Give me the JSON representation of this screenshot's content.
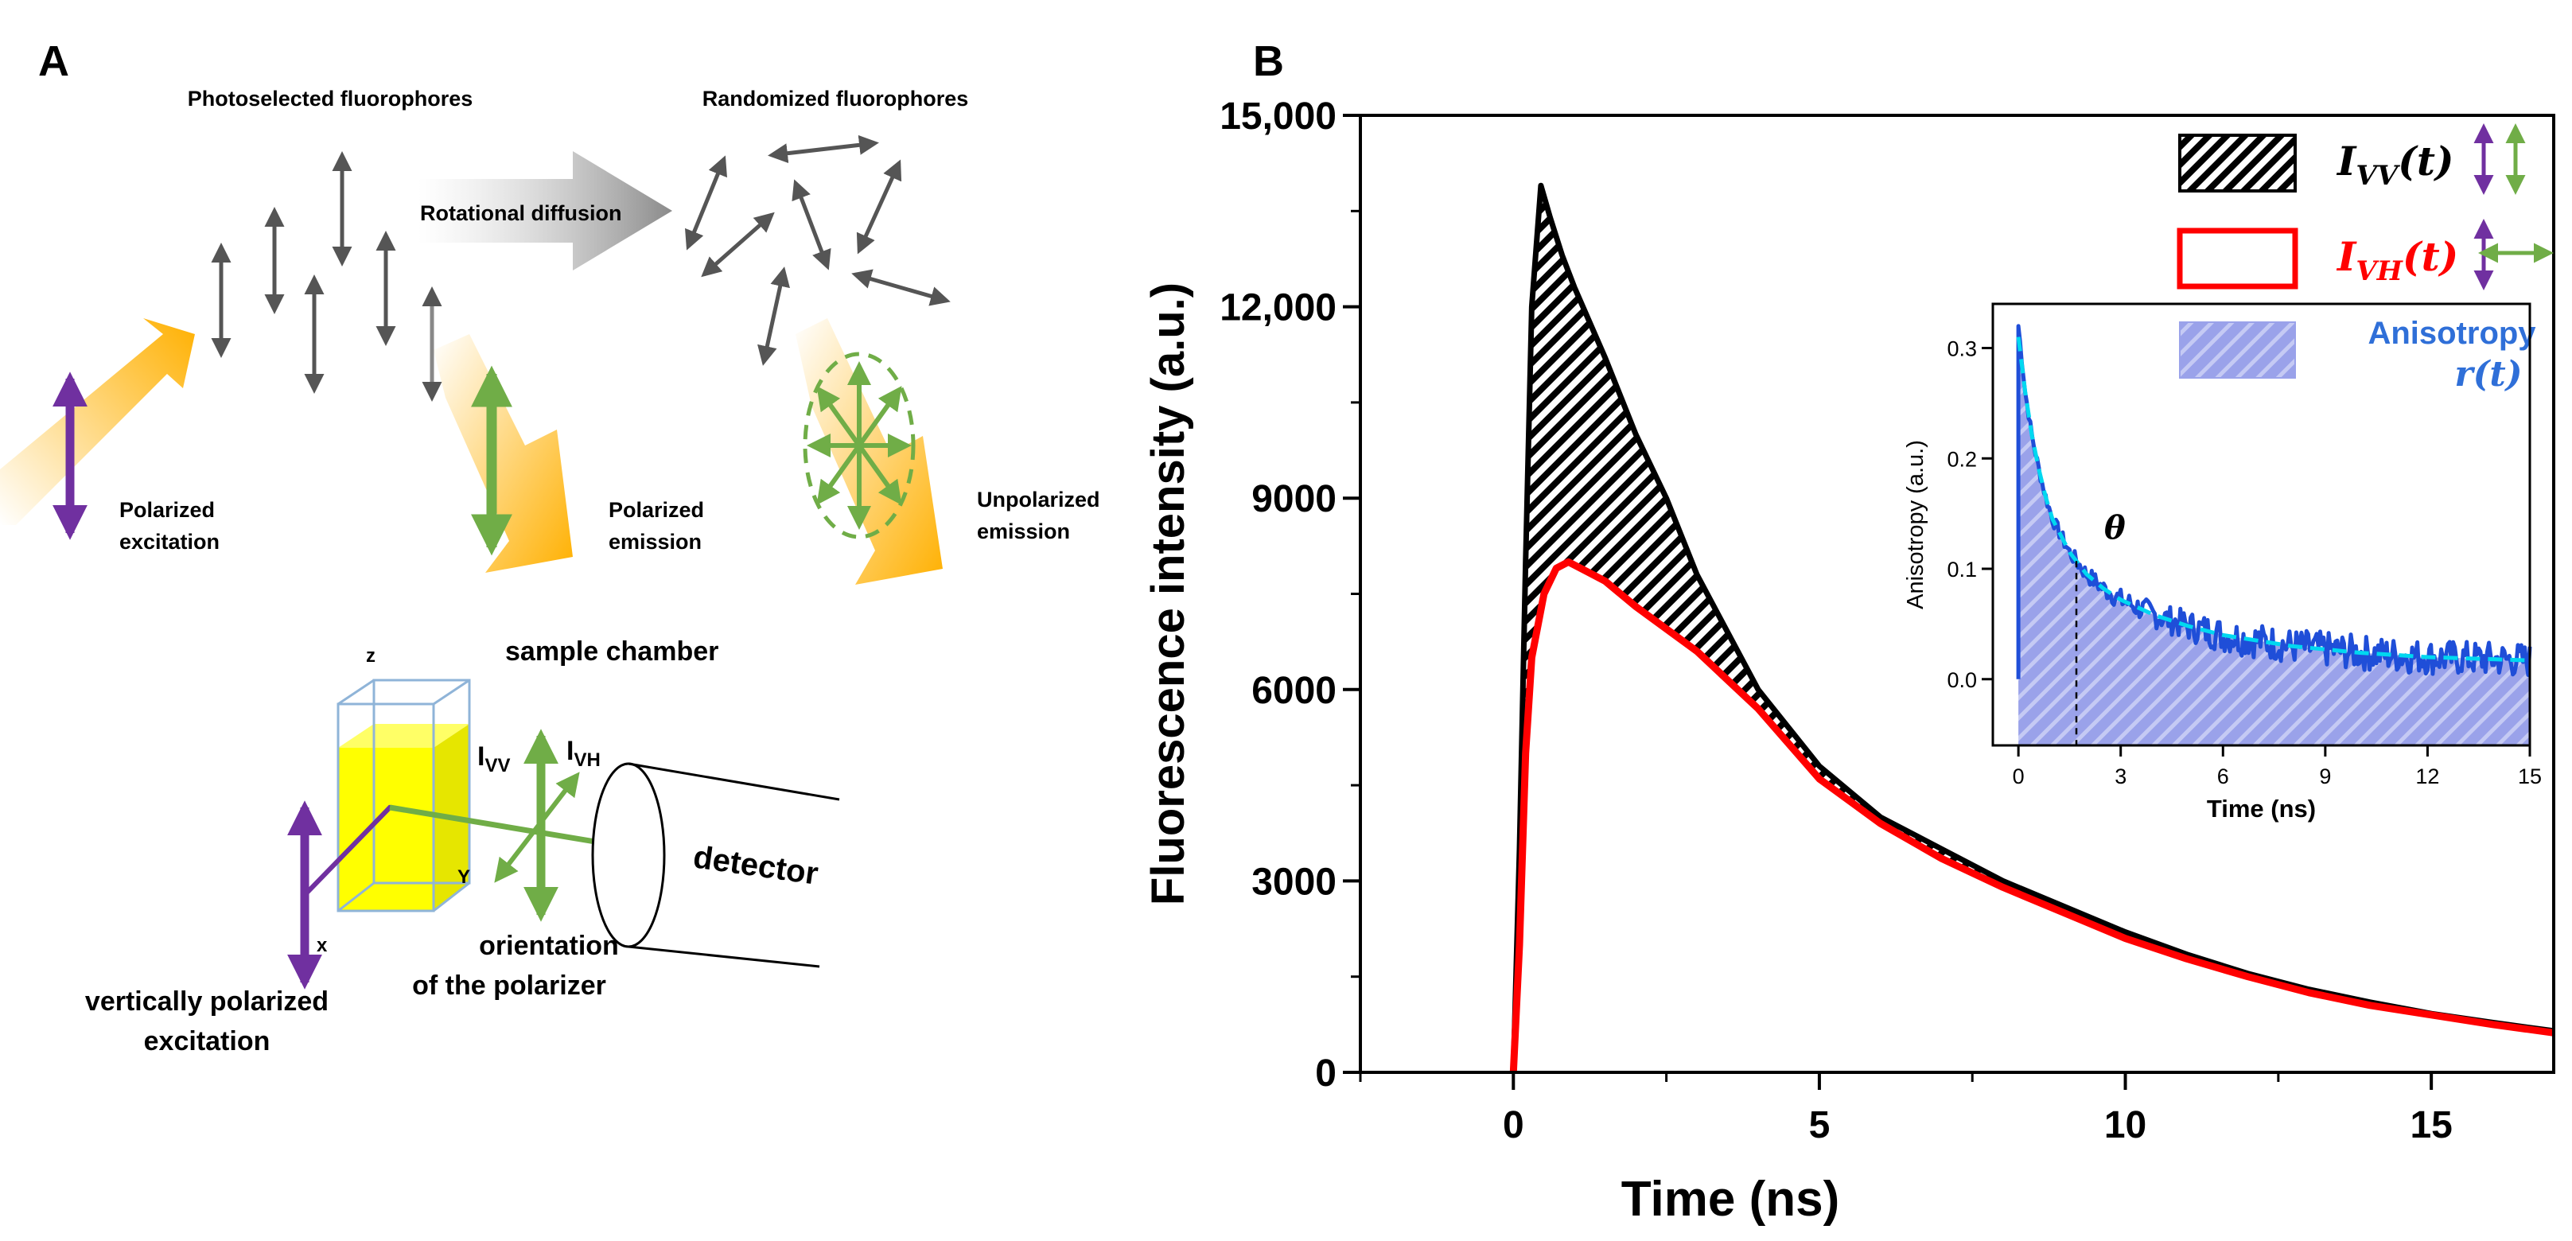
{
  "panel_a": {
    "label": "A",
    "photoselected_label": "Photoselected fluorophores",
    "randomized_label": "Randomized fluorophores",
    "rotational_diffusion_label": "Rotational diffusion",
    "polarized_excitation_line1": "Polarized",
    "polarized_excitation_line2": "excitation",
    "polarized_emission_line1": "Polarized",
    "polarized_emission_line2": "emission",
    "unpolarized_emission_line1": "Unpolarized",
    "unpolarized_emission_line2": "emission",
    "sample_chamber_label": "sample chamber",
    "axis_z": "z",
    "axis_x": "x",
    "axis_y": "Y",
    "ivv_main": "I",
    "ivv_sub": "VV",
    "ivh_main": "I",
    "ivh_sub": "VH",
    "detector_label": "detector",
    "orientation_line1": "orientation",
    "orientation_line2": "of the polarizer",
    "vertical_excitation_line1": "vertically polarized",
    "vertical_excitation_line2": "excitation"
  },
  "panel_b": {
    "label": "B"
  },
  "colors": {
    "purple": "#7030a0",
    "green": "#70ad47",
    "red": "#ff0000",
    "black": "#000000",
    "blue": "#1f4ed8",
    "cyan": "#00d8f0",
    "orange": "#ffb000",
    "gray_arrow": "#555555"
  },
  "chart_data": [
    {
      "type": "line",
      "title": "",
      "xlabel": "Time (ns)",
      "ylabel": "Fluorescence intensity (a.u.)",
      "xlim": [
        -2.5,
        17
      ],
      "ylim": [
        0,
        15000
      ],
      "xticks": [
        0,
        5,
        10,
        15
      ],
      "xtick_labels": [
        "0",
        "5",
        "10",
        "15"
      ],
      "yticks": [
        0,
        3000,
        6000,
        9000,
        12000,
        15000
      ],
      "ytick_labels": [
        "0",
        "3000",
        "6000",
        "9000",
        "12,000",
        "15,000"
      ],
      "legend": {
        "placement": "top-right",
        "entries": [
          {
            "main": "I",
            "sub": "VV",
            "arg": "(t)",
            "style": "hatched-black"
          },
          {
            "main": "I",
            "sub": "VH",
            "arg": "(t)",
            "style": "red-outline"
          },
          {
            "line1": "Anisotropy",
            "line2": "r(t)",
            "style": "hatched-blue"
          }
        ]
      },
      "series": [
        {
          "name": "I_VV(t)",
          "color": "#000000",
          "x": [
            0,
            0.1,
            0.2,
            0.3,
            0.45,
            0.6,
            0.8,
            1.0,
            1.5,
            2.0,
            2.5,
            3.0,
            4.0,
            5.0,
            6.0,
            7.0,
            8.0,
            9.0,
            10.0,
            11.0,
            12.0,
            13.0,
            14.0,
            15.0,
            16.0,
            17.0
          ],
          "y": [
            0,
            3500,
            8000,
            12000,
            13900,
            13400,
            12800,
            12300,
            11200,
            10000,
            9000,
            7800,
            6000,
            4800,
            4000,
            3500,
            3000,
            2600,
            2200,
            1850,
            1550,
            1300,
            1100,
            920,
            780,
            650
          ]
        },
        {
          "name": "I_VH(t)",
          "color": "#ff0000",
          "x": [
            0,
            0.1,
            0.2,
            0.3,
            0.5,
            0.7,
            0.9,
            1.2,
            1.5,
            2.0,
            3.0,
            4.0,
            5.0,
            6.0,
            7.0,
            8.0,
            9.0,
            10.0,
            11.0,
            12.0,
            13.0,
            14.0,
            15.0,
            16.0,
            17.0
          ],
          "y": [
            0,
            2000,
            5000,
            6500,
            7500,
            7900,
            8000,
            7850,
            7700,
            7300,
            6600,
            5700,
            4600,
            3900,
            3350,
            2900,
            2500,
            2100,
            1780,
            1500,
            1250,
            1050,
            900,
            750,
            620
          ]
        }
      ]
    },
    {
      "type": "area",
      "title": "",
      "xlabel": "Time (ns)",
      "ylabel": "Anisotropy (a.u.)",
      "xlim": [
        -0.75,
        15
      ],
      "ylim": [
        -0.06,
        0.34
      ],
      "xticks": [
        0,
        3,
        6,
        9,
        12,
        15
      ],
      "xtick_labels": [
        "0",
        "3",
        "6",
        "9",
        "12",
        "15"
      ],
      "yticks": [
        0.0,
        0.1,
        0.2,
        0.3
      ],
      "ytick_labels": [
        "0.0",
        "0.1",
        "0.2",
        "0.3"
      ],
      "annotation": {
        "text": "θ",
        "x": 1.7
      },
      "series": [
        {
          "name": "r(t) data",
          "color": "#1f4ed8",
          "x": [
            0,
            0.1,
            0.2,
            0.4,
            0.6,
            0.8,
            1.0,
            1.5,
            2.0,
            2.5,
            3.0,
            4.0,
            5.0,
            6.0,
            7.0,
            8.0,
            9.0,
            10.0,
            11.0,
            12.0,
            13.0,
            14.0,
            15.0
          ],
          "y": [
            0.32,
            0.29,
            0.26,
            0.22,
            0.19,
            0.165,
            0.145,
            0.115,
            0.095,
            0.082,
            0.072,
            0.058,
            0.048,
            0.04,
            0.035,
            0.03,
            0.027,
            0.024,
            0.022,
            0.02,
            0.019,
            0.018,
            0.017
          ]
        },
        {
          "name": "r(t) fit",
          "color": "#00d8f0",
          "x": [
            0,
            0.1,
            0.2,
            0.4,
            0.6,
            0.8,
            1.0,
            1.5,
            2.0,
            2.5,
            3.0,
            4.0,
            5.0,
            6.0,
            7.0,
            8.0,
            9.0,
            10.0,
            11.0,
            12.0,
            13.0,
            14.0,
            15.0
          ],
          "y": [
            0.31,
            0.285,
            0.26,
            0.22,
            0.19,
            0.165,
            0.145,
            0.115,
            0.095,
            0.082,
            0.072,
            0.058,
            0.048,
            0.04,
            0.035,
            0.03,
            0.027,
            0.024,
            0.022,
            0.02,
            0.019,
            0.018,
            0.017
          ]
        }
      ]
    }
  ]
}
